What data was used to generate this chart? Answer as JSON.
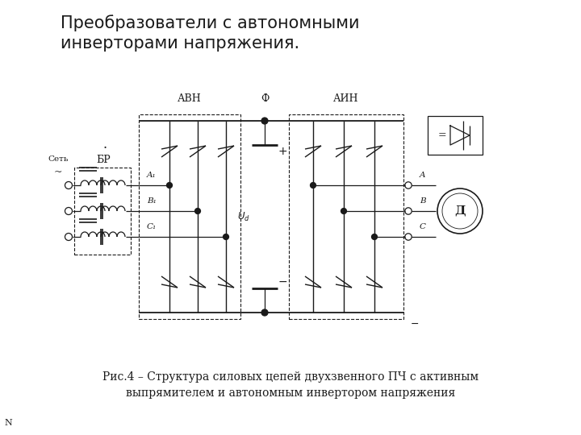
{
  "title": "Преобразователи с автономными\nинверторами напряжения.",
  "title_fontsize": 15,
  "caption_line1": "Рис.4 – Структура силовых цепей двухзвенного ПЧ с активным",
  "caption_line2": "выпрямителем и автономным инвертором напряжения",
  "caption_fontsize": 10,
  "bg_color": "#ffffff",
  "dc": "#1a1a1a",
  "label_AVN": "АВН",
  "label_F": "Ф",
  "label_AIN": "АИН",
  "label_Set": "Сеть",
  "label_BR": "БР",
  "label_Ud": "Ud",
  "label_D": "Д",
  "label_A1": "A₁",
  "label_B1": "B₁",
  "label_C1": "C₁",
  "label_A": "A",
  "label_B": "B",
  "label_C": "C",
  "watermark": "N",
  "dot_label": "·"
}
